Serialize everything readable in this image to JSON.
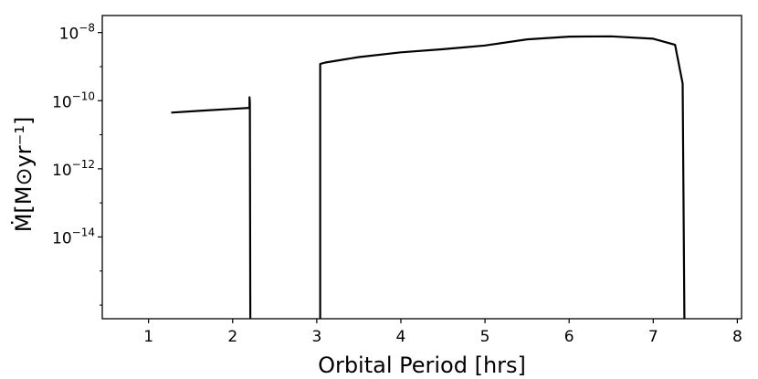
{
  "chart_data": {
    "type": "line",
    "xlabel": "Orbital Period [hrs]",
    "ylabel": "Ṁ[M⊙yr⁻¹]",
    "xlim": [
      0.45,
      8.05
    ],
    "ylog": true,
    "ylim_exp": [
      -16.4,
      -7.5
    ],
    "grid": false,
    "xticks": [
      {
        "v": 1,
        "label": "1"
      },
      {
        "v": 2,
        "label": "2"
      },
      {
        "v": 3,
        "label": "3"
      },
      {
        "v": 4,
        "label": "4"
      },
      {
        "v": 5,
        "label": "5"
      },
      {
        "v": 6,
        "label": "6"
      },
      {
        "v": 7,
        "label": "7"
      },
      {
        "v": 8,
        "label": "8"
      }
    ],
    "yticks": [
      {
        "e": -8,
        "label": "10",
        "sup": "−8"
      },
      {
        "e": -10,
        "label": "10",
        "sup": "−10"
      },
      {
        "e": -12,
        "label": "10",
        "sup": "−12"
      },
      {
        "e": -14,
        "label": "10",
        "sup": "−14"
      }
    ],
    "yminor_exp": [
      -16,
      -15,
      -13,
      -11,
      -9
    ],
    "series": [
      {
        "color": "#000000",
        "points": [
          {
            "x": 1.27,
            "y_exp": -10.35
          },
          {
            "x": 1.6,
            "y_exp": -10.3
          },
          {
            "x": 2.0,
            "y_exp": -10.24
          },
          {
            "x": 2.2,
            "y_exp": -10.21
          },
          {
            "x": 2.2,
            "y_exp": -9.9
          },
          {
            "x": 2.205,
            "y_exp": -10.05
          },
          {
            "x": 2.21,
            "y_exp": -16.4
          }
        ]
      },
      {
        "color": "#000000",
        "points": [
          {
            "x": 3.04,
            "y_exp": -16.4
          },
          {
            "x": 3.04,
            "y_exp": -8.92
          },
          {
            "x": 3.1,
            "y_exp": -8.88
          },
          {
            "x": 3.2,
            "y_exp": -8.84
          },
          {
            "x": 3.5,
            "y_exp": -8.72
          },
          {
            "x": 4.0,
            "y_exp": -8.58
          },
          {
            "x": 4.5,
            "y_exp": -8.49
          },
          {
            "x": 5.0,
            "y_exp": -8.38
          },
          {
            "x": 5.5,
            "y_exp": -8.2
          },
          {
            "x": 6.0,
            "y_exp": -8.12
          },
          {
            "x": 6.5,
            "y_exp": -8.11
          },
          {
            "x": 7.0,
            "y_exp": -8.18
          },
          {
            "x": 7.26,
            "y_exp": -8.36
          },
          {
            "x": 7.35,
            "y_exp": -9.5
          },
          {
            "x": 7.37,
            "y_exp": -16.4
          }
        ]
      }
    ]
  }
}
